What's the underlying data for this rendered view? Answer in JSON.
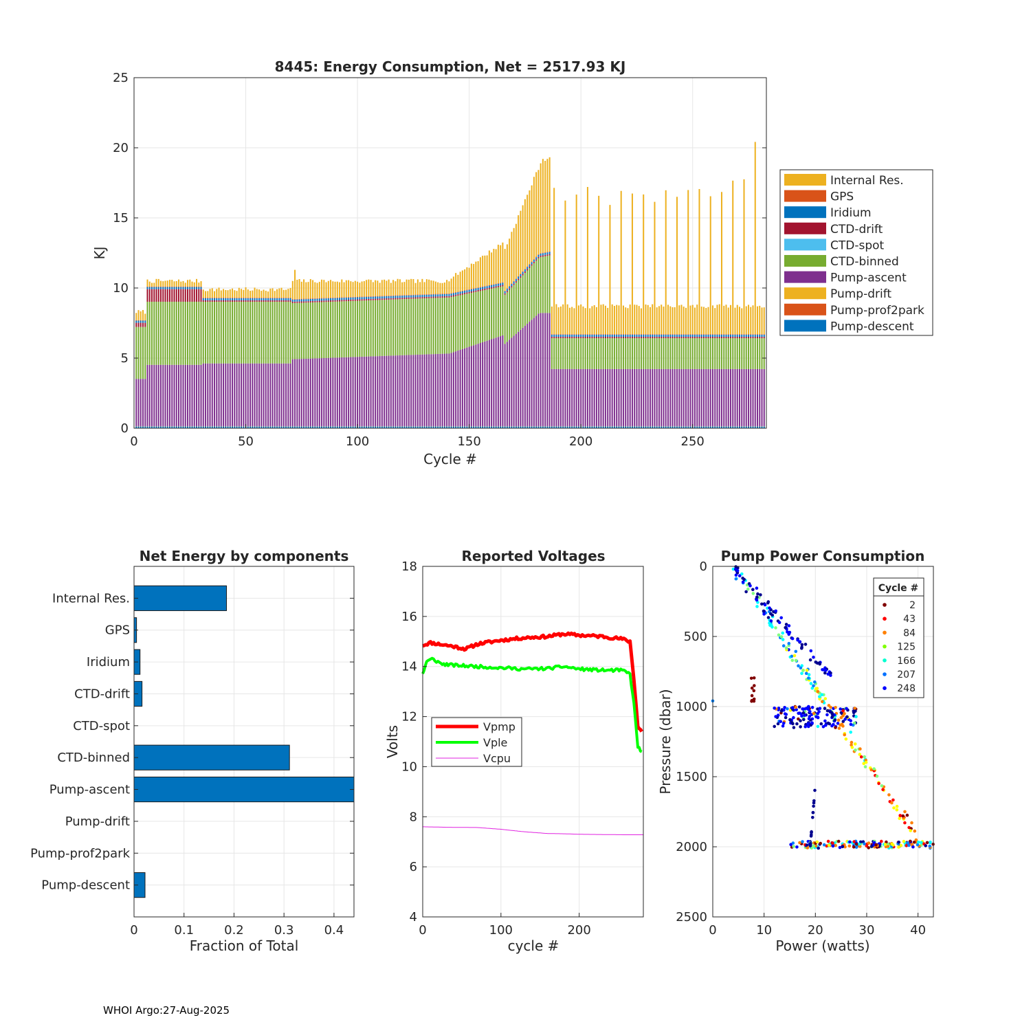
{
  "footer": "WHOI Argo:27-Aug-2025",
  "chart_data": [
    {
      "id": "energy",
      "type": "bar",
      "stacked": true,
      "title": "8445: Energy Consumption,  Net = 2517.93 KJ",
      "xlabel": "Cycle #",
      "ylabel": "KJ",
      "xlim": [
        0,
        283
      ],
      "ylim": [
        0,
        25
      ],
      "xticks": [
        0,
        50,
        100,
        150,
        200,
        250
      ],
      "yticks": [
        0,
        5,
        10,
        15,
        20,
        25
      ],
      "grid": true,
      "legend_position": "right",
      "series": [
        {
          "name": "Internal Res.",
          "color": "#EDB120"
        },
        {
          "name": "GPS",
          "color": "#D95319"
        },
        {
          "name": "Iridium",
          "color": "#0072BD"
        },
        {
          "name": "CTD-drift",
          "color": "#A2142F"
        },
        {
          "name": "CTD-spot",
          "color": "#4DBEEE"
        },
        {
          "name": "CTD-binned",
          "color": "#77AC30"
        },
        {
          "name": "Pump-ascent",
          "color": "#7E2F8E"
        },
        {
          "name": "Pump-drift",
          "color": "#EDB120"
        },
        {
          "name": "Pump-prof2park",
          "color": "#D95319"
        },
        {
          "name": "Pump-descent",
          "color": "#0072BD"
        }
      ],
      "phases": [
        {
          "cycles": [
            1,
            5
          ],
          "pump_ascent": 3.5,
          "ctd_binned": 3.7,
          "ctd_drift": 0.3,
          "total": 8.3
        },
        {
          "cycles": [
            5,
            30
          ],
          "pump_ascent": 4.5,
          "ctd_binned": 4.5,
          "ctd_drift": 0.9,
          "total": 10.5
        },
        {
          "cycles": [
            31,
            70
          ],
          "pump_ascent": 4.6,
          "ctd_binned": 4.4,
          "ctd_drift": 0.1,
          "total": 9.9
        },
        {
          "cycles": [
            71,
            140
          ],
          "pump_ascent": 5.1,
          "ctd_binned": 4.0,
          "ctd_drift": 0.1,
          "total": 10.5
        },
        {
          "cycles": [
            141,
            165
          ],
          "pump_ascent": 5.8,
          "ctd_binned": 3.6,
          "ctd_drift": 0.1,
          "total": 12.0
        },
        {
          "cycles": [
            166,
            186
          ],
          "pump_ascent": 8.0,
          "ctd_binned": 4.0,
          "ctd_drift": 0.1,
          "total": 19.0
        },
        {
          "cycles": [
            187,
            283
          ],
          "pump_ascent": 4.2,
          "ctd_binned": 2.2,
          "ctd_drift": 0.1,
          "total": 8.7
        },
        {
          "cycles": [
            188,
            283
          ],
          "periodic_every": 5,
          "spike_total": 16.5
        }
      ]
    },
    {
      "id": "components",
      "type": "bar",
      "orientation": "horizontal",
      "title": "Net Energy by components",
      "xlabel": "Fraction of Total",
      "xlim": [
        0,
        0.44
      ],
      "xticks": [
        0,
        0.1,
        0.2,
        0.3,
        0.4
      ],
      "xtick_labels": [
        "0",
        "0.1",
        "0.2",
        "0.3",
        "0.4"
      ],
      "grid": true,
      "bar_color": "#0072BD",
      "categories": [
        "Internal Res.",
        "GPS",
        "Iridium",
        "CTD-drift",
        "CTD-spot",
        "CTD-binned",
        "Pump-ascent",
        "Pump-drift",
        "Pump-prof2park",
        "Pump-descent"
      ],
      "values": [
        0.185,
        0.005,
        0.012,
        0.016,
        0.0,
        0.311,
        0.45,
        0.0,
        0.0,
        0.022
      ]
    },
    {
      "id": "voltages",
      "type": "line",
      "title": "Reported Voltages",
      "xlabel": "cycle #",
      "ylabel": "Volts",
      "xlim": [
        0,
        282
      ],
      "ylim": [
        4,
        18
      ],
      "xticks": [
        0,
        100,
        200
      ],
      "yticks": [
        4,
        6,
        8,
        10,
        12,
        14,
        16,
        18
      ],
      "grid": true,
      "legend_position": "middle-left",
      "series": [
        {
          "name": "Vpmp",
          "color": "#FF0000",
          "x": [
            0,
            10,
            20,
            40,
            55,
            70,
            100,
            130,
            160,
            180,
            200,
            230,
            255,
            265,
            270,
            275,
            280
          ],
          "y": [
            14.85,
            14.95,
            14.9,
            14.8,
            14.7,
            14.9,
            15.05,
            15.15,
            15.2,
            15.3,
            15.25,
            15.2,
            15.1,
            15.0,
            13.5,
            11.6,
            11.4
          ]
        },
        {
          "name": "Vple",
          "color": "#00FF00",
          "x": [
            0,
            5,
            12,
            25,
            40,
            70,
            100,
            130,
            160,
            180,
            200,
            230,
            255,
            265,
            270,
            275,
            280
          ],
          "y": [
            13.7,
            14.2,
            14.3,
            14.1,
            14.05,
            14.0,
            13.95,
            13.9,
            13.92,
            14.0,
            13.9,
            13.85,
            13.85,
            13.7,
            12.5,
            10.8,
            10.6
          ]
        },
        {
          "name": "Vcpu",
          "color": "#E020E0",
          "x": [
            0,
            30,
            70,
            100,
            130,
            160,
            180,
            200,
            230,
            260,
            282
          ],
          "y": [
            7.6,
            7.58,
            7.57,
            7.5,
            7.4,
            7.33,
            7.32,
            7.3,
            7.29,
            7.28,
            7.28
          ]
        }
      ]
    },
    {
      "id": "pump_power",
      "type": "scatter",
      "title": "Pump Power Consumption",
      "xlabel": "Power (watts)",
      "ylabel": "Pressure (dbar)",
      "xlim": [
        0,
        43
      ],
      "ylim": [
        0,
        2500
      ],
      "y_reversed": true,
      "xticks": [
        0,
        10,
        20,
        30,
        40
      ],
      "yticks": [
        0,
        500,
        1000,
        1500,
        2000,
        2500
      ],
      "grid": true,
      "legend_title": "Cycle #",
      "legend_position": "top-right",
      "legend": [
        {
          "label": "2",
          "color": "#800000"
        },
        {
          "label": "43",
          "color": "#FF0000"
        },
        {
          "label": "84",
          "color": "#FF8000"
        },
        {
          "label": "125",
          "color": "#80FF00"
        },
        {
          "label": "166",
          "color": "#00FFD0"
        },
        {
          "label": "207",
          "color": "#0070FF"
        },
        {
          "label": "248",
          "color": "#0000FF"
        }
      ],
      "color_scale": [
        "#00008F",
        "#0000FF",
        "#0080FF",
        "#00FFFF",
        "#80FF80",
        "#FFFF00",
        "#FF8000",
        "#FF0000",
        "#800000"
      ],
      "trends": [
        {
          "desc": "ascent line",
          "from": [
            4,
            0
          ],
          "to": [
            41,
            2000
          ]
        },
        {
          "desc": "early ascent",
          "from": [
            4,
            0
          ],
          "to": [
            23,
            800
          ]
        },
        {
          "desc": "park cluster",
          "x_range": [
            12,
            28
          ],
          "y_range": [
            1000,
            1150
          ]
        },
        {
          "desc": "bottom cluster",
          "x_range": [
            15,
            43
          ],
          "y_range": [
            1960,
            2010
          ]
        },
        {
          "desc": "descent stray",
          "from": [
            20,
            1550
          ],
          "to": [
            19,
            2000
          ]
        }
      ]
    }
  ]
}
